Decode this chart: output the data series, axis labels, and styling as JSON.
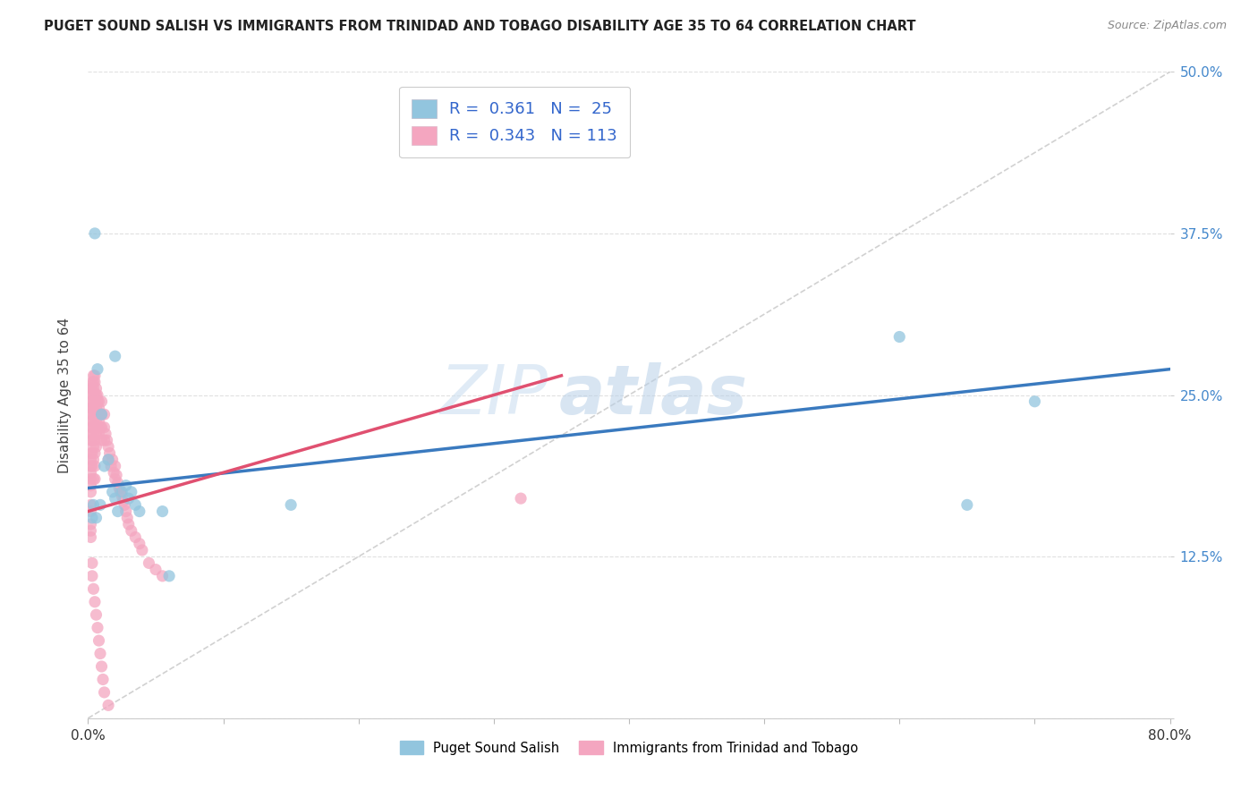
{
  "title": "PUGET SOUND SALISH VS IMMIGRANTS FROM TRINIDAD AND TOBAGO DISABILITY AGE 35 TO 64 CORRELATION CHART",
  "source": "Source: ZipAtlas.com",
  "ylabel": "Disability Age 35 to 64",
  "xlim": [
    0.0,
    0.8
  ],
  "ylim": [
    0.0,
    0.5
  ],
  "xticks": [
    0.0,
    0.1,
    0.2,
    0.3,
    0.4,
    0.5,
    0.6,
    0.7,
    0.8
  ],
  "yticks": [
    0.0,
    0.125,
    0.25,
    0.375,
    0.5
  ],
  "blue_R": 0.361,
  "blue_N": 25,
  "pink_R": 0.343,
  "pink_N": 113,
  "blue_color": "#92c5de",
  "pink_color": "#f4a6c0",
  "trend_blue_color": "#3a7abf",
  "trend_pink_color": "#e05070",
  "legend_label_blue": "Puget Sound Salish",
  "legend_label_pink": "Immigrants from Trinidad and Tobago",
  "blue_trend_x0": 0.0,
  "blue_trend_y0": 0.178,
  "blue_trend_x1": 0.8,
  "blue_trend_y1": 0.27,
  "pink_trend_x0": 0.0,
  "pink_trend_y0": 0.16,
  "pink_trend_x1": 0.35,
  "pink_trend_y1": 0.265,
  "ref_line_x": [
    0.0,
    0.8
  ],
  "ref_line_y": [
    0.0,
    0.5
  ],
  "blue_scatter_x": [
    0.005,
    0.007,
    0.01,
    0.012,
    0.015,
    0.018,
    0.02,
    0.022,
    0.025,
    0.028,
    0.03,
    0.032,
    0.035,
    0.038,
    0.055,
    0.06,
    0.003,
    0.004,
    0.006,
    0.009,
    0.15,
    0.6,
    0.7,
    0.65,
    0.02
  ],
  "blue_scatter_y": [
    0.375,
    0.27,
    0.235,
    0.195,
    0.2,
    0.175,
    0.17,
    0.16,
    0.175,
    0.18,
    0.17,
    0.175,
    0.165,
    0.16,
    0.16,
    0.11,
    0.155,
    0.165,
    0.155,
    0.165,
    0.165,
    0.295,
    0.245,
    0.165,
    0.28
  ],
  "pink_scatter_x": [
    0.002,
    0.002,
    0.002,
    0.002,
    0.002,
    0.002,
    0.002,
    0.002,
    0.002,
    0.002,
    0.002,
    0.002,
    0.002,
    0.002,
    0.002,
    0.002,
    0.002,
    0.002,
    0.002,
    0.002,
    0.003,
    0.003,
    0.003,
    0.003,
    0.003,
    0.003,
    0.003,
    0.003,
    0.003,
    0.003,
    0.004,
    0.004,
    0.004,
    0.004,
    0.004,
    0.004,
    0.004,
    0.004,
    0.004,
    0.004,
    0.005,
    0.005,
    0.005,
    0.005,
    0.005,
    0.005,
    0.005,
    0.005,
    0.005,
    0.005,
    0.006,
    0.006,
    0.006,
    0.006,
    0.006,
    0.006,
    0.007,
    0.007,
    0.007,
    0.007,
    0.008,
    0.008,
    0.008,
    0.008,
    0.009,
    0.009,
    0.01,
    0.01,
    0.01,
    0.01,
    0.012,
    0.012,
    0.012,
    0.013,
    0.014,
    0.015,
    0.015,
    0.016,
    0.017,
    0.018,
    0.019,
    0.02,
    0.02,
    0.021,
    0.022,
    0.023,
    0.024,
    0.025,
    0.026,
    0.027,
    0.028,
    0.029,
    0.03,
    0.032,
    0.035,
    0.038,
    0.04,
    0.045,
    0.05,
    0.055,
    0.003,
    0.003,
    0.004,
    0.005,
    0.006,
    0.007,
    0.008,
    0.009,
    0.01,
    0.011,
    0.012,
    0.015,
    0.32
  ],
  "pink_scatter_y": [
    0.255,
    0.245,
    0.24,
    0.235,
    0.23,
    0.225,
    0.22,
    0.215,
    0.205,
    0.2,
    0.195,
    0.19,
    0.185,
    0.18,
    0.175,
    0.165,
    0.16,
    0.15,
    0.145,
    0.14,
    0.26,
    0.255,
    0.25,
    0.245,
    0.24,
    0.235,
    0.225,
    0.215,
    0.205,
    0.195,
    0.265,
    0.26,
    0.255,
    0.25,
    0.24,
    0.23,
    0.22,
    0.21,
    0.2,
    0.185,
    0.265,
    0.26,
    0.25,
    0.245,
    0.235,
    0.225,
    0.215,
    0.205,
    0.195,
    0.185,
    0.255,
    0.25,
    0.24,
    0.23,
    0.22,
    0.21,
    0.25,
    0.245,
    0.235,
    0.225,
    0.245,
    0.24,
    0.23,
    0.22,
    0.235,
    0.225,
    0.245,
    0.235,
    0.225,
    0.215,
    0.235,
    0.225,
    0.215,
    0.22,
    0.215,
    0.21,
    0.2,
    0.205,
    0.195,
    0.2,
    0.19,
    0.195,
    0.185,
    0.188,
    0.182,
    0.178,
    0.175,
    0.172,
    0.168,
    0.165,
    0.16,
    0.155,
    0.15,
    0.145,
    0.14,
    0.135,
    0.13,
    0.12,
    0.115,
    0.11,
    0.12,
    0.11,
    0.1,
    0.09,
    0.08,
    0.07,
    0.06,
    0.05,
    0.04,
    0.03,
    0.02,
    0.01,
    0.17
  ],
  "watermark_zip": "ZIP",
  "watermark_atlas": "atlas",
  "background_color": "#ffffff",
  "grid_color": "#e0e0e0"
}
